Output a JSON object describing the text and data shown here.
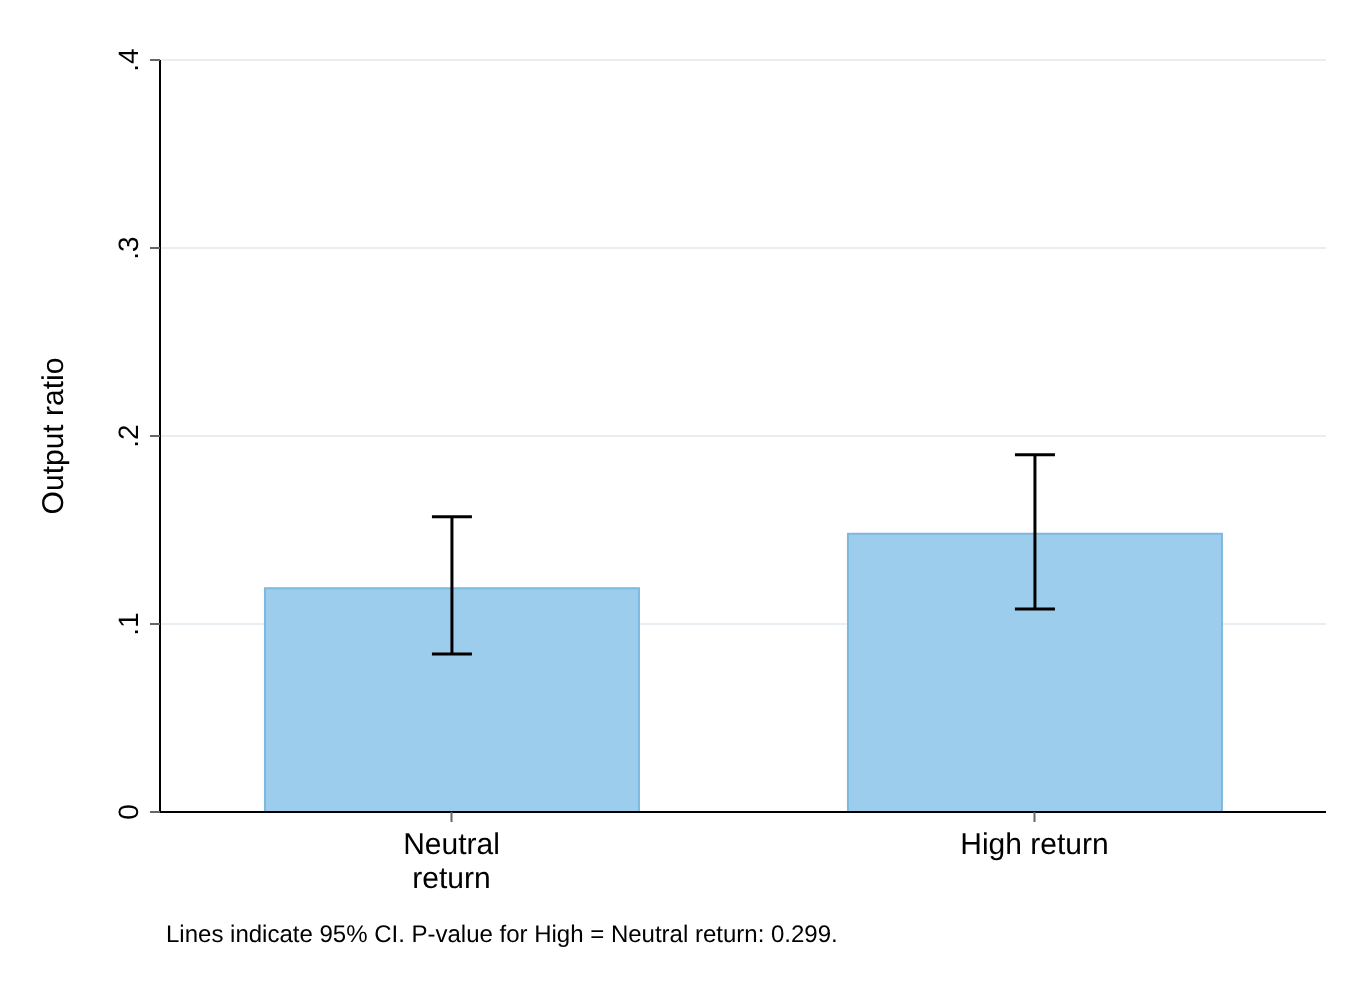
{
  "chart_data": {
    "type": "bar",
    "categories": [
      "Neutral return",
      "High return"
    ],
    "values": [
      0.119,
      0.148
    ],
    "errors": [
      [
        0.084,
        0.157
      ],
      [
        0.108,
        0.19
      ]
    ],
    "color": "#9ccdec",
    "ylabel": "Output ratio",
    "ylim": [
      0,
      0.4
    ],
    "yticks": [
      {
        "value": 0,
        "label": "0"
      },
      {
        "value": 0.1,
        "label": ".1"
      },
      {
        "value": 0.2,
        "label": ".2"
      },
      {
        "value": 0.3,
        "label": ".3"
      },
      {
        "value": 0.4,
        "label": ".4"
      }
    ],
    "grid": "y",
    "annotations": [
      "Lines indicate 95% CI. P-value for High = Neutral return: 0.299."
    ]
  }
}
